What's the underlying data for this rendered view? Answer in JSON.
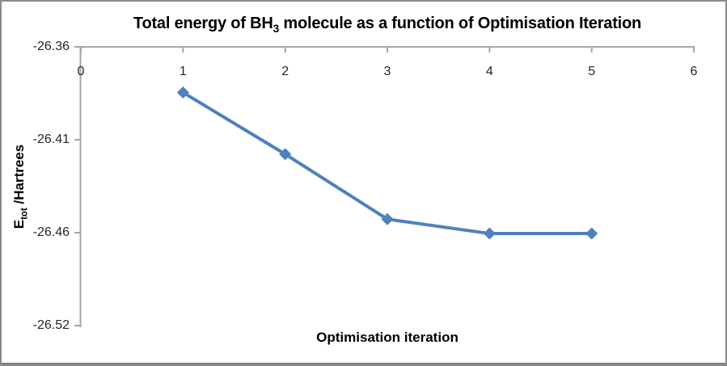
{
  "frame": {
    "border_color": "#8b8b8b"
  },
  "chart_data": {
    "type": "line",
    "title_text": "Total energy of BH3 molecule as a function of Optimisation Iteration",
    "title_parts": {
      "prefix": "Total energy of BH",
      "subscript": "3",
      "suffix": " molecule as a function of Optimisation Iteration"
    },
    "xlabel": "Optimisation iteration",
    "ylabel_text": "Etot /Hartrees",
    "ylabel_parts": {
      "prefix": "E",
      "subscript": "tot",
      "suffix": " /Hartrees"
    },
    "x": [
      1,
      2,
      3,
      4,
      5
    ],
    "y": [
      -26.382,
      -26.4185,
      -26.457,
      -26.4655,
      -26.4655
    ],
    "xlim": [
      0,
      6
    ],
    "ylim": [
      -26.52,
      -26.355
    ],
    "x_tick_labels": [
      "0",
      "1",
      "2",
      "3",
      "4",
      "5",
      "6"
    ],
    "y_tick_labels": [
      "-26.36",
      "-26.41",
      "-26.46",
      "-26.52"
    ],
    "grid": false,
    "legend": false,
    "marker": "diamond",
    "colors": {
      "series": "#4E81BD",
      "axis": "#A6A6A6",
      "tick_text": "#262626",
      "title_text": "#000000"
    }
  }
}
